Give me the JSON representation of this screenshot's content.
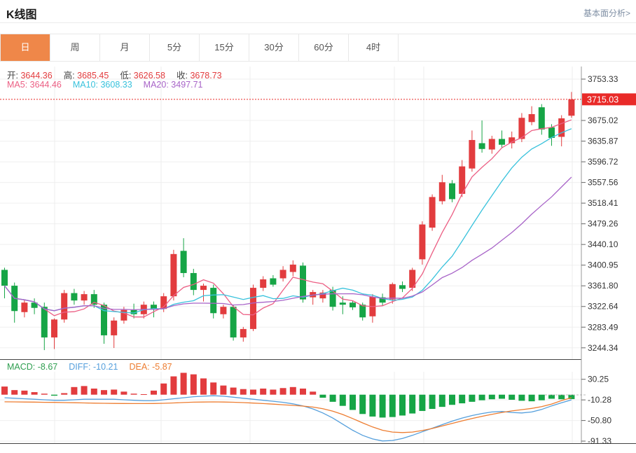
{
  "header": {
    "title": "K线图",
    "link_label": "基本面分析>"
  },
  "tabs": {
    "items": [
      {
        "label": "日",
        "active": true
      },
      {
        "label": "周",
        "active": false
      },
      {
        "label": "月",
        "active": false
      },
      {
        "label": "5分",
        "active": false
      },
      {
        "label": "15分",
        "active": false
      },
      {
        "label": "30分",
        "active": false
      },
      {
        "label": "60分",
        "active": false
      },
      {
        "label": "4时",
        "active": false
      }
    ]
  },
  "ohlc": {
    "items": [
      {
        "label": "开:",
        "value": "3644.36"
      },
      {
        "label": "高:",
        "value": "3685.45"
      },
      {
        "label": "低:",
        "value": "3626.58"
      },
      {
        "label": "收:",
        "value": "3678.73"
      }
    ]
  },
  "ma": {
    "items": [
      {
        "label": "MA5:",
        "value": "3644.46"
      },
      {
        "label": "MA10:",
        "value": "3608.33"
      },
      {
        "label": "MA20:",
        "value": "3497.71"
      }
    ]
  },
  "macd_labels": {
    "items": [
      {
        "label": "MACD:",
        "value": "-8.67"
      },
      {
        "label": "DIFF:",
        "value": "-10.21"
      },
      {
        "label": "DEA:",
        "value": "-5.87"
      }
    ]
  },
  "price_marker": {
    "value": "3715.03"
  },
  "colors": {
    "up": "#e23c3e",
    "down": "#16a546",
    "ma5": "#ec5f84",
    "ma10": "#38c2dc",
    "ma20": "#a864c8",
    "diff": "#559fdc",
    "dea": "#ed7d31",
    "macd_text": "#2e9e4f",
    "accent_tab": "#ef8749",
    "price_badge": "#e92a28",
    "link": "#7f8fa4"
  },
  "chart_data": {
    "type": "candlestick",
    "title": "K线图",
    "legend_position": "top-left",
    "grid": true,
    "x_gridlines": [
      78,
      230,
      357,
      563,
      605,
      817
    ],
    "panes": {
      "main": {
        "ylim": [
          3225,
          3777
        ],
        "y_ticks": [
          "3753.33",
          "3675.02",
          "3635.87",
          "3596.72",
          "3557.56",
          "3518.41",
          "3479.26",
          "3440.10",
          "3400.95",
          "3361.80",
          "3322.64",
          "3283.49",
          "3244.34"
        ],
        "current_price": 3715.03,
        "ma_periods": [
          5,
          10,
          20
        ],
        "candles": [
          [
            3392,
            3396,
            3338,
            3362
          ],
          [
            3362,
            3368,
            3292,
            3314
          ],
          [
            3312,
            3336,
            3302,
            3330
          ],
          [
            3330,
            3338,
            3308,
            3320
          ],
          [
            3322,
            3330,
            3240,
            3264
          ],
          [
            3264,
            3300,
            3242,
            3298
          ],
          [
            3298,
            3354,
            3292,
            3348
          ],
          [
            3348,
            3356,
            3326,
            3334
          ],
          [
            3334,
            3352,
            3326,
            3346
          ],
          [
            3346,
            3354,
            3320,
            3326
          ],
          [
            3326,
            3330,
            3252,
            3268
          ],
          [
            3268,
            3302,
            3244,
            3296
          ],
          [
            3296,
            3322,
            3290,
            3316
          ],
          [
            3316,
            3328,
            3300,
            3308
          ],
          [
            3308,
            3332,
            3300,
            3326
          ],
          [
            3326,
            3332,
            3302,
            3318
          ],
          [
            3318,
            3348,
            3312,
            3342
          ],
          [
            3342,
            3430,
            3334,
            3422
          ],
          [
            3428,
            3452,
            3378,
            3386
          ],
          [
            3386,
            3394,
            3344,
            3354
          ],
          [
            3354,
            3366,
            3332,
            3362
          ],
          [
            3358,
            3364,
            3300,
            3310
          ],
          [
            3308,
            3326,
            3300,
            3322
          ],
          [
            3322,
            3326,
            3258,
            3264
          ],
          [
            3264,
            3284,
            3256,
            3280
          ],
          [
            3280,
            3364,
            3276,
            3358
          ],
          [
            3358,
            3380,
            3352,
            3374
          ],
          [
            3376,
            3382,
            3360,
            3364
          ],
          [
            3376,
            3399,
            3370,
            3392
          ],
          [
            3388,
            3410,
            3380,
            3402
          ],
          [
            3400,
            3406,
            3330,
            3336
          ],
          [
            3340,
            3354,
            3326,
            3350
          ],
          [
            3338,
            3354,
            3330,
            3349
          ],
          [
            3354,
            3360,
            3315,
            3322
          ],
          [
            3330,
            3342,
            3308,
            3326
          ],
          [
            3330,
            3334,
            3316,
            3321
          ],
          [
            3326,
            3330,
            3296,
            3302
          ],
          [
            3304,
            3346,
            3292,
            3341
          ],
          [
            3340,
            3347,
            3324,
            3330
          ],
          [
            3336,
            3368,
            3328,
            3365
          ],
          [
            3363,
            3370,
            3350,
            3356
          ],
          [
            3358,
            3396,
            3352,
            3392
          ],
          [
            3412,
            3484,
            3402,
            3478
          ],
          [
            3472,
            3535,
            3466,
            3530
          ],
          [
            3522,
            3572,
            3516,
            3558
          ],
          [
            3556,
            3562,
            3520,
            3526
          ],
          [
            3536,
            3600,
            3530,
            3588
          ],
          [
            3584,
            3656,
            3578,
            3638
          ],
          [
            3632,
            3675,
            3614,
            3621
          ],
          [
            3620,
            3646,
            3612,
            3640
          ],
          [
            3640,
            3656,
            3624,
            3629
          ],
          [
            3632,
            3654,
            3622,
            3643
          ],
          [
            3640,
            3689,
            3634,
            3680
          ],
          [
            3672,
            3702,
            3666,
            3687
          ],
          [
            3700,
            3706,
            3648,
            3658
          ],
          [
            3662,
            3668,
            3627,
            3642
          ],
          [
            3644,
            3685,
            3626,
            3679
          ],
          [
            3684,
            3729,
            3680,
            3715
          ]
        ]
      },
      "macd": {
        "ylim": [
          -100,
          38
        ],
        "y_ticks": [
          "30.25",
          "-10.28",
          "-50.80",
          "-91.33"
        ],
        "histogram": [
          16,
          9,
          8,
          5,
          2,
          -2,
          3,
          15,
          17,
          12,
          9,
          10,
          6,
          2,
          1,
          8,
          22,
          36,
          43,
          40,
          32,
          24,
          18,
          14,
          11,
          10,
          12,
          10,
          13,
          15,
          12,
          6,
          -6,
          -14,
          -22,
          -30,
          -38,
          -43,
          -45,
          -44,
          -41,
          -37,
          -32,
          -28,
          -24,
          -20,
          -17,
          -14,
          -11,
          -9,
          -8,
          -10,
          -12,
          -13,
          -11,
          -8,
          -9,
          -8.67
        ],
        "diff": [
          -6,
          -7,
          -8,
          -9,
          -10,
          -11,
          -11,
          -10,
          -9,
          -9,
          -9,
          -9,
          -10,
          -11,
          -12,
          -12,
          -10,
          -8,
          -6,
          -4,
          -3,
          -2,
          -3,
          -5,
          -7,
          -9,
          -11,
          -13,
          -15,
          -18,
          -22,
          -28,
          -36,
          -46,
          -58,
          -70,
          -80,
          -87,
          -91,
          -90,
          -86,
          -80,
          -73,
          -66,
          -59,
          -52,
          -46,
          -41,
          -37,
          -34,
          -33,
          -35,
          -36,
          -34,
          -29,
          -22,
          -16,
          -10.21
        ],
        "dea": [
          -14,
          -14.2,
          -14.4,
          -14.6,
          -15,
          -15.2,
          -15.5,
          -15.8,
          -16.2,
          -16.6,
          -17,
          -17.2,
          -17.4,
          -17.5,
          -17.5,
          -17.3,
          -16.9,
          -16.2,
          -15.4,
          -14.8,
          -14.4,
          -14.2,
          -14.4,
          -14.9,
          -15.6,
          -16.5,
          -17.5,
          -18.6,
          -19.8,
          -21,
          -22.4,
          -24.4,
          -27.6,
          -32.4,
          -39,
          -47,
          -55.5,
          -63.5,
          -70,
          -73.5,
          -74.5,
          -73.5,
          -70.5,
          -66.5,
          -61.5,
          -56.5,
          -51.5,
          -47,
          -42.5,
          -38.5,
          -35,
          -32,
          -29.5,
          -27,
          -23.5,
          -18.5,
          -11.5,
          -5.87
        ]
      }
    }
  }
}
